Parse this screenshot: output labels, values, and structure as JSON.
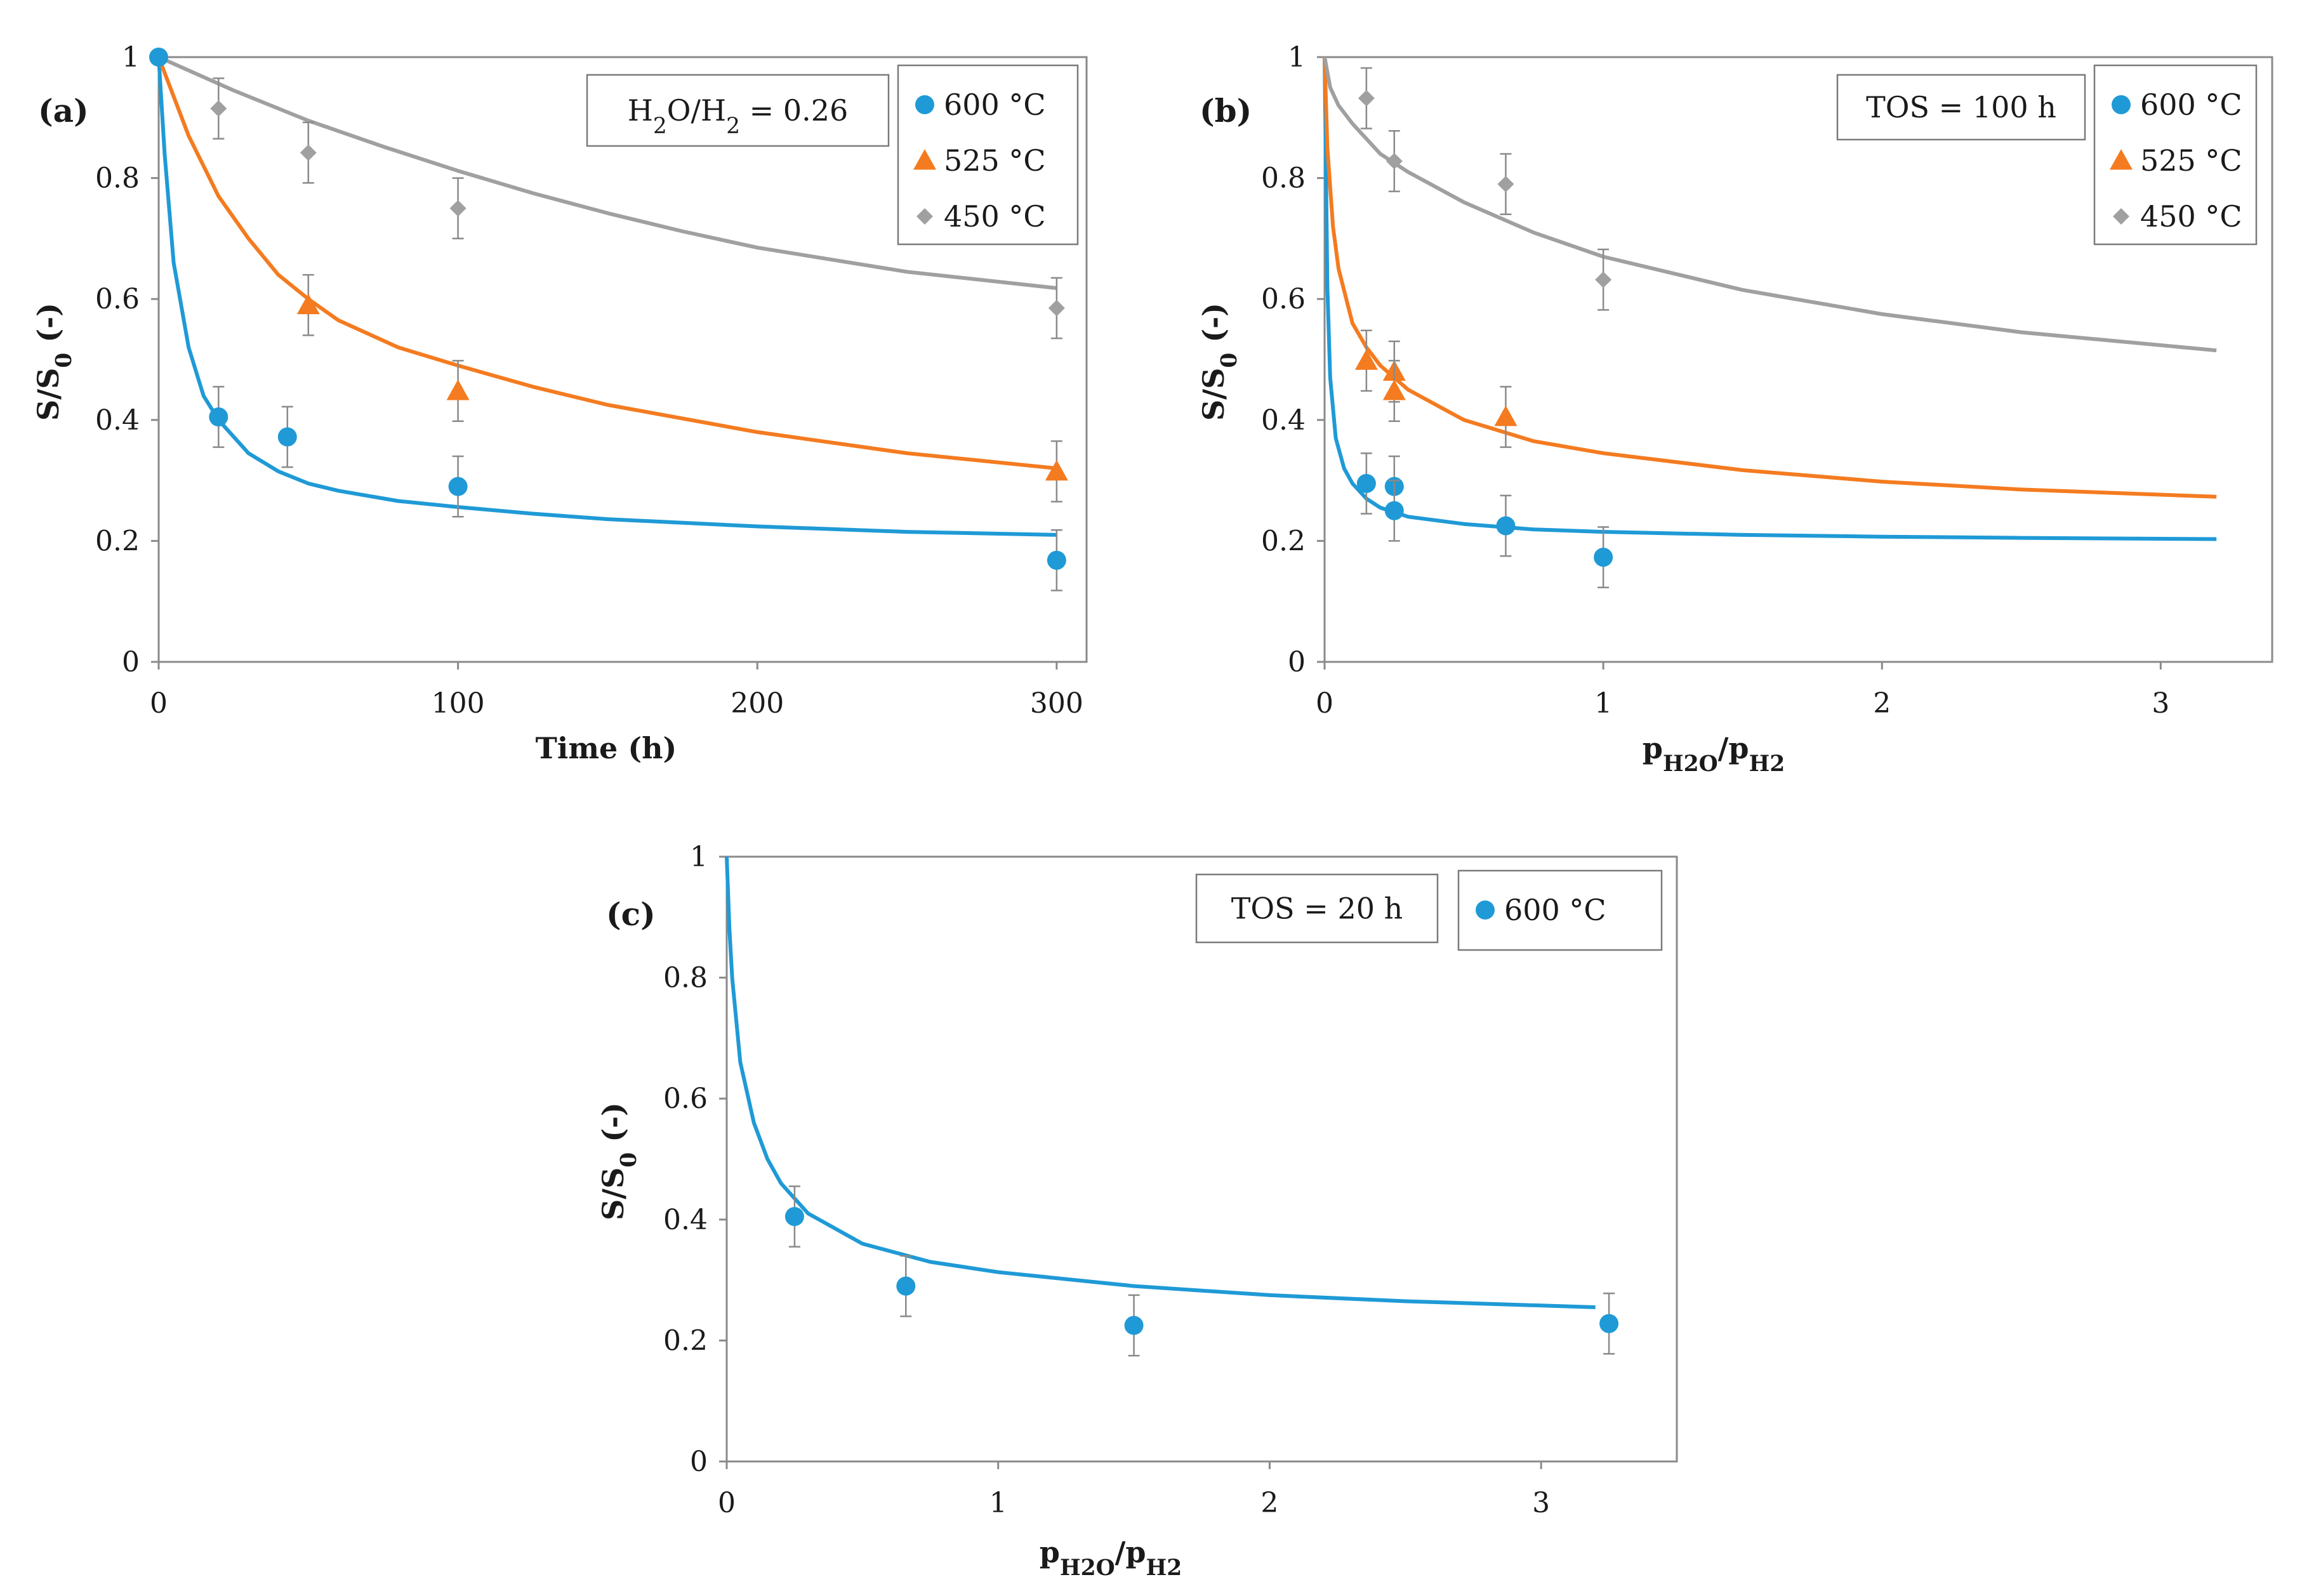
{
  "chart_data": [
    {
      "type": "scatter",
      "panel_label": "(a)",
      "xlabel": "Time (h)",
      "ylabel": "S/S0 (-)",
      "xlim": [
        0,
        310
      ],
      "ylim": [
        0,
        1
      ],
      "x_ticks": [
        "0",
        "100",
        "200",
        "300"
      ],
      "x_tick_values": [
        0,
        100,
        200,
        300
      ],
      "y_ticks": [
        "0",
        "0.2",
        "0.4",
        "0.6",
        "0.8",
        "1"
      ],
      "y_tick_values": [
        0,
        0.2,
        0.4,
        0.6,
        0.8,
        1
      ],
      "annotation": "H2O/H2 = 0.26",
      "series": [
        {
          "name": "600 °C",
          "color": "#1f9ad6",
          "marker": "circle",
          "x": [
            0,
            20,
            43,
            100,
            300
          ],
          "y": [
            1.0,
            0.405,
            0.372,
            0.29,
            0.168
          ],
          "err": [
            0,
            0.05,
            0.05,
            0.05,
            0.05
          ],
          "fit_x": [
            0,
            2,
            5,
            10,
            15,
            20,
            30,
            40,
            50,
            60,
            80,
            100,
            125,
            150,
            200,
            250,
            300
          ],
          "fit_y": [
            1.0,
            0.84,
            0.66,
            0.52,
            0.44,
            0.4,
            0.345,
            0.315,
            0.295,
            0.283,
            0.266,
            0.256,
            0.245,
            0.236,
            0.224,
            0.215,
            0.21
          ]
        },
        {
          "name": "525 °C",
          "color": "#f47b20",
          "marker": "triangle",
          "x": [
            50,
            100,
            300
          ],
          "y": [
            0.59,
            0.448,
            0.315
          ],
          "err": [
            0.05,
            0.05,
            0.05
          ],
          "fit_x": [
            0,
            10,
            20,
            30,
            40,
            50,
            60,
            80,
            100,
            125,
            150,
            200,
            250,
            300
          ],
          "fit_y": [
            1.0,
            0.87,
            0.77,
            0.7,
            0.64,
            0.6,
            0.565,
            0.52,
            0.49,
            0.455,
            0.425,
            0.38,
            0.345,
            0.32
          ]
        },
        {
          "name": "450 °C",
          "color": "#a0a0a0",
          "marker": "diamond",
          "x": [
            20,
            50,
            100,
            300
          ],
          "y": [
            0.915,
            0.842,
            0.75,
            0.585
          ],
          "err": [
            0.05,
            0.05,
            0.05,
            0.05
          ],
          "fit_x": [
            0,
            25,
            50,
            75,
            100,
            125,
            150,
            175,
            200,
            250,
            300
          ],
          "fit_y": [
            1.0,
            0.945,
            0.895,
            0.852,
            0.812,
            0.775,
            0.742,
            0.712,
            0.685,
            0.645,
            0.618
          ]
        }
      ]
    },
    {
      "type": "scatter",
      "panel_label": "(b)",
      "xlabel": "pH2O/pH2",
      "ylabel": "S/S0 (-)",
      "xlim": [
        0,
        3.4
      ],
      "ylim": [
        0,
        1
      ],
      "x_ticks": [
        "0",
        "1",
        "2",
        "3"
      ],
      "x_tick_values": [
        0,
        1,
        2,
        3
      ],
      "y_ticks": [
        "0",
        "0.2",
        "0.4",
        "0.6",
        "0.8",
        "1"
      ],
      "y_tick_values": [
        0,
        0.2,
        0.4,
        0.6,
        0.8,
        1
      ],
      "annotation": "TOS = 100 h",
      "series": [
        {
          "name": "600 °C",
          "color": "#1f9ad6",
          "marker": "circle",
          "x": [
            0.15,
            0.25,
            0.25,
            0.65,
            1.0
          ],
          "y": [
            0.295,
            0.29,
            0.25,
            0.225,
            0.173
          ],
          "err": [
            0.05,
            0.05,
            0.05,
            0.05,
            0.05
          ],
          "fit_x": [
            0,
            0.01,
            0.02,
            0.04,
            0.07,
            0.1,
            0.15,
            0.2,
            0.3,
            0.5,
            0.75,
            1.0,
            1.5,
            2.0,
            2.5,
            3.2
          ],
          "fit_y": [
            1.0,
            0.62,
            0.47,
            0.37,
            0.32,
            0.295,
            0.27,
            0.255,
            0.24,
            0.228,
            0.219,
            0.215,
            0.21,
            0.207,
            0.205,
            0.203
          ]
        },
        {
          "name": "525 °C",
          "color": "#f47b20",
          "marker": "triangle",
          "x": [
            0.15,
            0.25,
            0.25,
            0.65
          ],
          "y": [
            0.498,
            0.48,
            0.448,
            0.405
          ],
          "err": [
            0.05,
            0.05,
            0.05,
            0.05
          ],
          "fit_x": [
            0,
            0.01,
            0.03,
            0.05,
            0.1,
            0.15,
            0.2,
            0.3,
            0.5,
            0.75,
            1.0,
            1.5,
            2.0,
            2.5,
            3.2
          ],
          "fit_y": [
            1.0,
            0.85,
            0.72,
            0.65,
            0.56,
            0.52,
            0.49,
            0.45,
            0.4,
            0.365,
            0.345,
            0.317,
            0.298,
            0.285,
            0.273
          ]
        },
        {
          "name": "450 °C",
          "color": "#a0a0a0",
          "marker": "diamond",
          "x": [
            0.15,
            0.25,
            0.65,
            1.0
          ],
          "y": [
            0.932,
            0.828,
            0.79,
            0.632
          ],
          "err": [
            0.05,
            0.05,
            0.05,
            0.05
          ],
          "fit_x": [
            0,
            0.02,
            0.05,
            0.1,
            0.2,
            0.3,
            0.5,
            0.75,
            1.0,
            1.5,
            2.0,
            2.5,
            3.2
          ],
          "fit_y": [
            1.0,
            0.95,
            0.92,
            0.89,
            0.84,
            0.81,
            0.76,
            0.71,
            0.67,
            0.615,
            0.575,
            0.545,
            0.515
          ]
        }
      ]
    },
    {
      "type": "scatter",
      "panel_label": "(c)",
      "xlabel": "pH2O/pH2",
      "ylabel": "S/S0 (-)",
      "xlim": [
        0,
        3.5
      ],
      "ylim": [
        0,
        1
      ],
      "x_ticks": [
        "0",
        "1",
        "2",
        "3"
      ],
      "x_tick_values": [
        0,
        1,
        2,
        3
      ],
      "y_ticks": [
        "0",
        "0.2",
        "0.4",
        "0.6",
        "0.8",
        "1"
      ],
      "y_tick_values": [
        0,
        0.2,
        0.4,
        0.6,
        0.8,
        1
      ],
      "annotation": "TOS = 20 h",
      "series": [
        {
          "name": "600 °C",
          "color": "#1f9ad6",
          "marker": "circle",
          "x": [
            0.25,
            0.66,
            1.5,
            3.25
          ],
          "y": [
            0.405,
            0.29,
            0.225,
            0.228
          ],
          "err": [
            0.05,
            0.05,
            0.05,
            0.05
          ],
          "fit_x": [
            0,
            0.01,
            0.02,
            0.05,
            0.1,
            0.15,
            0.2,
            0.3,
            0.5,
            0.75,
            1.0,
            1.5,
            2.0,
            2.5,
            3.2
          ],
          "fit_y": [
            1.0,
            0.88,
            0.8,
            0.66,
            0.56,
            0.5,
            0.46,
            0.41,
            0.36,
            0.33,
            0.313,
            0.29,
            0.275,
            0.265,
            0.255
          ]
        }
      ]
    }
  ]
}
